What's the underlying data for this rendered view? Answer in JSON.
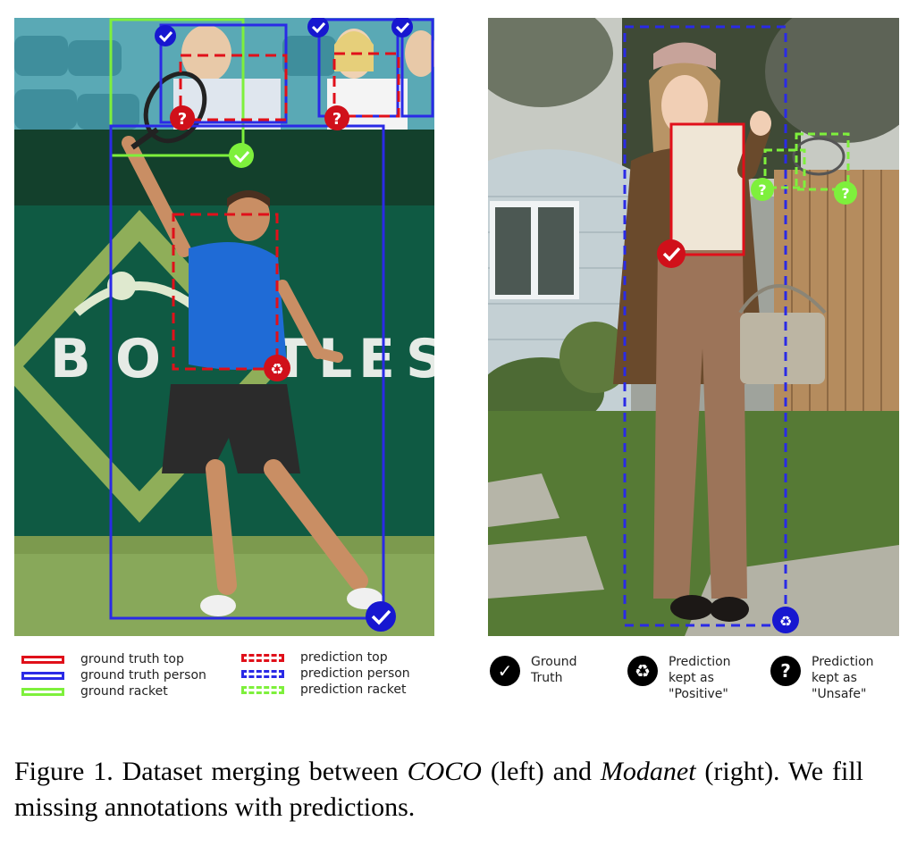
{
  "left_image": {
    "description_id": "tennis-player",
    "banner_letters": [
      "B",
      "O",
      "",
      "T",
      "L",
      "E",
      "S"
    ],
    "colors": {
      "top": "#e0101a",
      "person": "#2a2ae6",
      "racket": "#7ef03c"
    }
  },
  "right_image": {
    "description_id": "woman-garden"
  },
  "legend_left": {
    "gt_top": "ground truth top",
    "gt_person": "ground truth person",
    "gt_racket": "ground racket",
    "pred_top": "prediction top",
    "pred_person": "prediction person",
    "pred_racket": "prediction racket"
  },
  "legend_right": {
    "ground_truth": "Ground\nTruth",
    "positive": "Prediction\nkept as\n\"Positive\"",
    "unsafe": "Prediction\nkept as\n\"Unsafe\""
  },
  "marker_icons": {
    "ground_truth": "check-icon",
    "positive": "recycle-icon",
    "unsafe": "question-icon"
  },
  "caption": {
    "prefix": "Figure 1. Dataset merging between ",
    "coco": "COCO",
    "middle": " (left) and ",
    "modanet": "Modanet",
    "suffix": " (right). We fill missing annotations with predictions."
  }
}
